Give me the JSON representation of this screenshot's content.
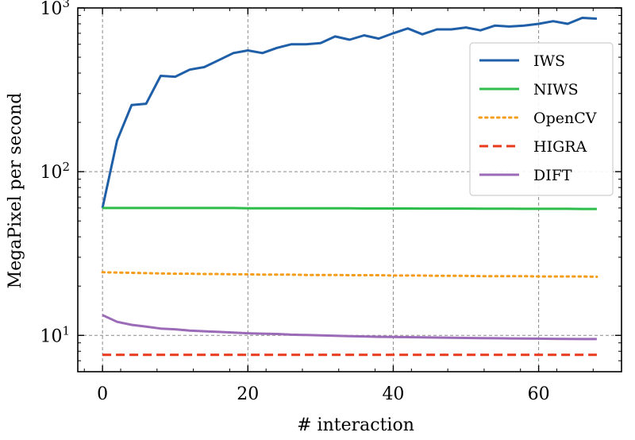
{
  "chart_data": {
    "type": "line",
    "xlabel": "# interaction",
    "ylabel": "MegaPixel per second",
    "xlim": [
      -3.4,
      71.4
    ],
    "ylim": [
      6.0,
      1000
    ],
    "yscale": "log",
    "grid": true,
    "legend_position": "upper-right",
    "x_ticks": [
      0,
      20,
      40,
      60
    ],
    "x_tick_labels": [
      "0",
      "20",
      "40",
      "60"
    ],
    "y_ticks": [
      10,
      100,
      1000
    ],
    "y_tick_labels": [
      {
        "base": "10",
        "exp": "1"
      },
      {
        "base": "10",
        "exp": "2"
      },
      {
        "base": "10",
        "exp": "3"
      }
    ],
    "x": [
      0,
      2,
      4,
      6,
      8,
      10,
      12,
      14,
      16,
      18,
      20,
      22,
      24,
      26,
      28,
      30,
      32,
      34,
      36,
      38,
      40,
      42,
      44,
      46,
      48,
      50,
      52,
      54,
      56,
      58,
      60,
      62,
      64,
      66,
      68
    ],
    "series": [
      {
        "name": "IWS",
        "color": "#1f5fa8",
        "style": "solid",
        "values": [
          60,
          155,
          255,
          260,
          385,
          380,
          420,
          435,
          480,
          530,
          550,
          530,
          570,
          600,
          600,
          610,
          670,
          640,
          680,
          650,
          700,
          750,
          690,
          740,
          740,
          760,
          730,
          780,
          770,
          780,
          800,
          830,
          800,
          870,
          860
        ]
      },
      {
        "name": "NIWS",
        "color": "#2ebd4a",
        "style": "solid",
        "values": [
          60,
          60,
          60,
          60,
          60,
          60,
          60,
          60,
          60,
          60,
          59.8,
          59.8,
          59.8,
          59.8,
          59.8,
          59.7,
          59.7,
          59.7,
          59.6,
          59.6,
          59.6,
          59.6,
          59.5,
          59.5,
          59.5,
          59.5,
          59.4,
          59.4,
          59.4,
          59.3,
          59.3,
          59.3,
          59.3,
          59.2,
          59.2
        ]
      },
      {
        "name": "OpenCV",
        "color": "#f59d1a",
        "style": "dotted",
        "values": [
          24.3,
          24.2,
          24.1,
          24.0,
          23.9,
          23.8,
          23.8,
          23.7,
          23.7,
          23.6,
          23.6,
          23.5,
          23.5,
          23.5,
          23.4,
          23.4,
          23.4,
          23.3,
          23.3,
          23.3,
          23.2,
          23.2,
          23.2,
          23.1,
          23.1,
          23.1,
          23.0,
          23.0,
          23.0,
          23.0,
          22.9,
          22.9,
          22.9,
          22.9,
          22.8
        ]
      },
      {
        "name": "HIGRA",
        "color": "#e8391c",
        "style": "dashed",
        "values": [
          7.6,
          7.6,
          7.6,
          7.6,
          7.6,
          7.6,
          7.6,
          7.6,
          7.6,
          7.6,
          7.6,
          7.6,
          7.6,
          7.6,
          7.6,
          7.6,
          7.6,
          7.6,
          7.6,
          7.6,
          7.6,
          7.6,
          7.6,
          7.6,
          7.6,
          7.6,
          7.6,
          7.6,
          7.6,
          7.6,
          7.6,
          7.6,
          7.6,
          7.6,
          7.6
        ]
      },
      {
        "name": "DIFT",
        "color": "#9b6bb8",
        "style": "solid",
        "values": [
          13.3,
          12.1,
          11.6,
          11.3,
          11.0,
          10.9,
          10.7,
          10.6,
          10.5,
          10.4,
          10.3,
          10.25,
          10.2,
          10.1,
          10.05,
          10.0,
          9.95,
          9.9,
          9.85,
          9.8,
          9.78,
          9.75,
          9.72,
          9.7,
          9.68,
          9.65,
          9.62,
          9.6,
          9.58,
          9.56,
          9.55,
          9.53,
          9.52,
          9.5,
          9.5
        ]
      }
    ]
  }
}
